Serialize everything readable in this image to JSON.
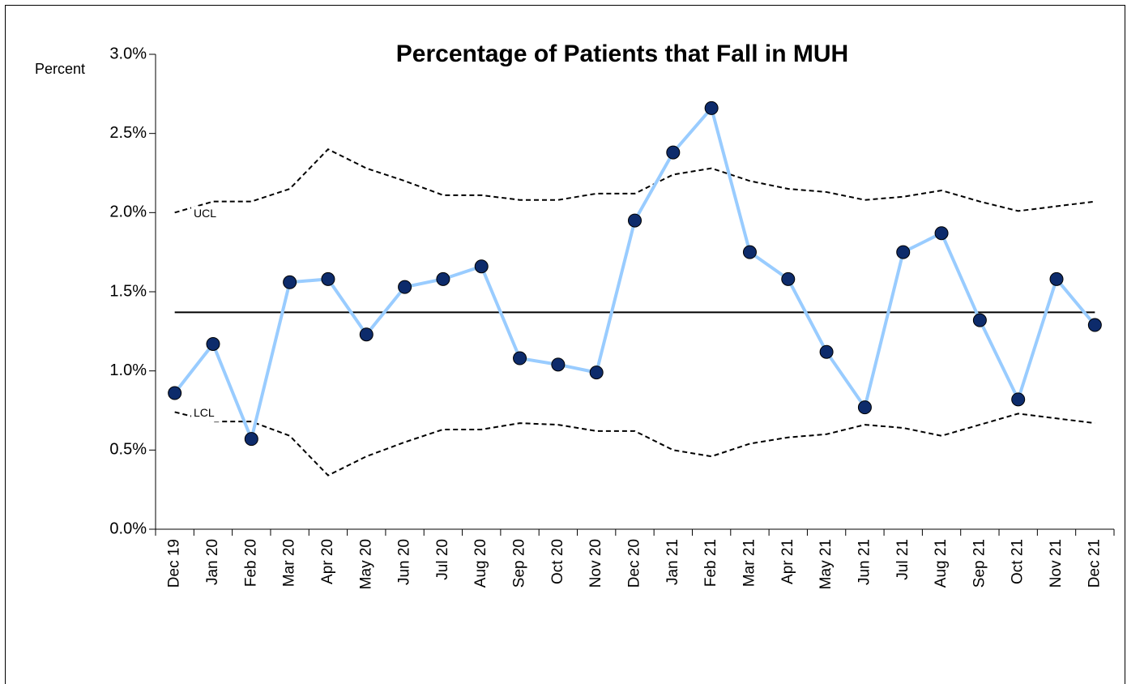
{
  "chart_data": {
    "type": "line",
    "title": "Percentage of Patients that Fall in MUH",
    "y_label": "Percent",
    "categories": [
      "Dec 19",
      "Jan 20",
      "Feb 20",
      "Mar 20",
      "Apr 20",
      "May 20",
      "Jun 20",
      "Jul 20",
      "Aug 20",
      "Sep 20",
      "Oct 20",
      "Nov 20",
      "Dec 20",
      "Jan 21",
      "Feb 21",
      "Mar 21",
      "Apr 21",
      "May 21",
      "Jun 21",
      "Jul 21",
      "Aug 21",
      "Sep 21",
      "Oct 21",
      "Nov 21",
      "Dec 21"
    ],
    "series": [
      {
        "name": "UCL",
        "color": "#000000",
        "style": "dashed",
        "values": [
          2.0,
          2.07,
          2.07,
          2.15,
          2.4,
          2.28,
          2.2,
          2.11,
          2.11,
          2.08,
          2.08,
          2.12,
          2.12,
          2.24,
          2.28,
          2.2,
          2.15,
          2.13,
          2.08,
          2.1,
          2.14,
          2.07,
          2.01,
          2.04,
          2.07
        ]
      },
      {
        "name": "LCL",
        "color": "#000000",
        "style": "dashed",
        "values": [
          0.74,
          0.68,
          0.68,
          0.59,
          0.34,
          0.46,
          0.55,
          0.63,
          0.63,
          0.67,
          0.66,
          0.62,
          0.62,
          0.5,
          0.46,
          0.54,
          0.58,
          0.6,
          0.66,
          0.64,
          0.59,
          0.66,
          0.73,
          0.7,
          0.67
        ]
      },
      {
        "color": "#000000",
        "style": "solid",
        "values": [
          1.37,
          1.37,
          1.37,
          1.37,
          1.37,
          1.37,
          1.37,
          1.37,
          1.37,
          1.37,
          1.37,
          1.37,
          1.37,
          1.37,
          1.37,
          1.37,
          1.37,
          1.37,
          1.37,
          1.37,
          1.37,
          1.37,
          1.37,
          1.37,
          1.37
        ]
      },
      {
        "color": "#99ccff",
        "marker_color": "#0d2b6b",
        "style": "solid",
        "markers": true,
        "values": [
          0.86,
          1.17,
          0.57,
          1.56,
          1.58,
          1.23,
          1.53,
          1.58,
          1.66,
          1.08,
          1.04,
          0.99,
          1.95,
          2.38,
          2.66,
          1.75,
          1.58,
          1.12,
          0.77,
          1.75,
          1.87,
          1.32,
          0.82,
          1.58,
          1.29
        ]
      }
    ],
    "ylim": [
      0,
      3
    ],
    "yticks": [
      {
        "value": 0,
        "label": "0.0%"
      },
      {
        "value": 0.5,
        "label": "0.5%"
      },
      {
        "value": 1,
        "label": "1.0%"
      },
      {
        "value": 1.5,
        "label": "1.5%"
      },
      {
        "value": 2,
        "label": "2.0%"
      },
      {
        "value": 2.5,
        "label": "2.5%"
      },
      {
        "value": 3,
        "label": "3.0%"
      }
    ]
  }
}
